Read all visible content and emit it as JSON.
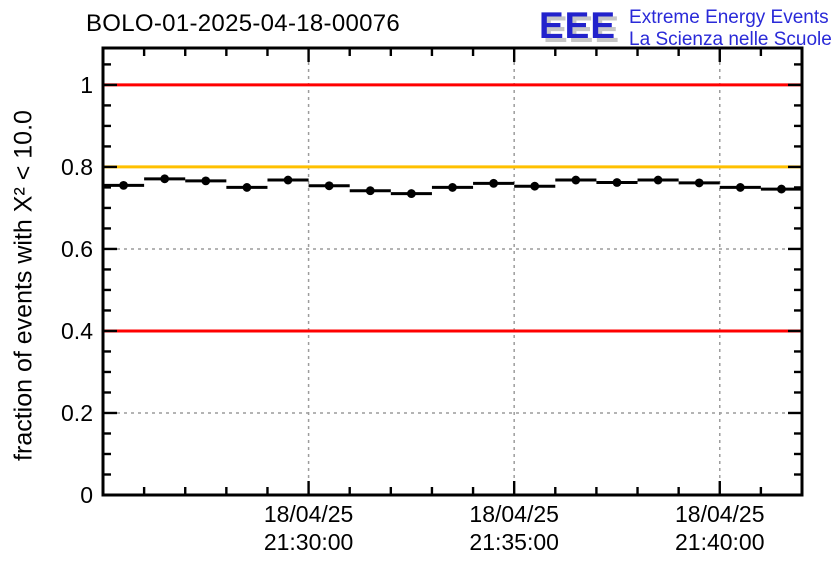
{
  "page": {
    "background": "#ffffff"
  },
  "header": {
    "title": "BOLO-01-2025-04-18-00076"
  },
  "logo": {
    "acronym": "EEE",
    "line1": "Extreme Energy Events",
    "line2": "La Scienza nelle Scuole",
    "color": "#2222cc",
    "text_color": "#2a2ad8",
    "shadow_color": "#c6c6c6"
  },
  "chart_data": {
    "type": "line",
    "title": "BOLO-01-2025-04-18-00076",
    "xlabel": "",
    "ylabel": "fraction of events with X² < 10.0",
    "ylim": [
      0,
      1.09
    ],
    "grid": {
      "on": true,
      "color": "#9c9c9c",
      "style": "dashed"
    },
    "legend": {
      "shown": false
    },
    "y_axis": {
      "range": [
        0,
        1.09
      ],
      "minor_step": 0.05,
      "major_ticks": [
        {
          "value": 0,
          "label": "0"
        },
        {
          "value": 0.2,
          "label": "0.2"
        },
        {
          "value": 0.4,
          "label": "0.4"
        },
        {
          "value": 0.6,
          "label": "0.6"
        },
        {
          "value": 0.8,
          "label": "0.8"
        },
        {
          "value": 1,
          "label": "1"
        }
      ]
    },
    "x_axis": {
      "start_time": "18/04/25 21:25:00",
      "end_time": "18/04/25 21:42:00",
      "range_minutes": [
        0,
        17
      ],
      "minor_step_minutes": 1,
      "major_ticks": [
        {
          "minute": 5,
          "label_date": "18/04/25",
          "label_time": "21:30:00"
        },
        {
          "minute": 10,
          "label_date": "18/04/25",
          "label_time": "21:35:00"
        },
        {
          "minute": 15,
          "label_date": "18/04/25",
          "label_time": "21:40:00"
        }
      ]
    },
    "reference_lines": [
      {
        "value": 1.0,
        "color": "#ff0000"
      },
      {
        "value": 0.8,
        "color": "#ffc000"
      },
      {
        "value": 0.4,
        "color": "#ff0000"
      }
    ],
    "series": [
      {
        "name": "fraction of events with chi2 < 10",
        "color": "#000000",
        "marker": "circle",
        "bin_halfwidth_minutes": 0.5,
        "points": [
          {
            "time": "21:25:30",
            "m": 0.5,
            "v": 0.755
          },
          {
            "time": "21:26:30",
            "m": 1.5,
            "v": 0.771
          },
          {
            "time": "21:27:30",
            "m": 2.5,
            "v": 0.766
          },
          {
            "time": "21:28:30",
            "m": 3.5,
            "v": 0.75
          },
          {
            "time": "21:29:30",
            "m": 4.5,
            "v": 0.768
          },
          {
            "time": "21:30:30",
            "m": 5.5,
            "v": 0.754
          },
          {
            "time": "21:31:30",
            "m": 6.5,
            "v": 0.742
          },
          {
            "time": "21:32:30",
            "m": 7.5,
            "v": 0.735
          },
          {
            "time": "21:33:30",
            "m": 8.5,
            "v": 0.75
          },
          {
            "time": "21:34:30",
            "m": 9.5,
            "v": 0.76
          },
          {
            "time": "21:35:30",
            "m": 10.5,
            "v": 0.753
          },
          {
            "time": "21:36:30",
            "m": 11.5,
            "v": 0.768
          },
          {
            "time": "21:37:30",
            "m": 12.5,
            "v": 0.762
          },
          {
            "time": "21:38:30",
            "m": 13.5,
            "v": 0.768
          },
          {
            "time": "21:39:30",
            "m": 14.5,
            "v": 0.761
          },
          {
            "time": "21:40:30",
            "m": 15.5,
            "v": 0.75
          },
          {
            "time": "21:41:30",
            "m": 16.5,
            "v": 0.746
          }
        ]
      }
    ]
  }
}
